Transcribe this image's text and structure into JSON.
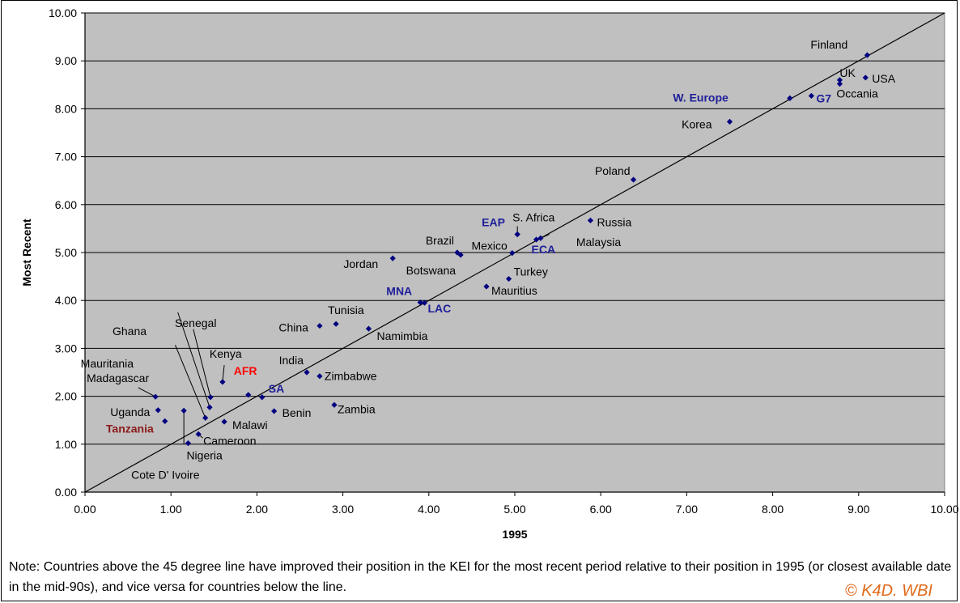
{
  "chart_data": {
    "type": "scatter",
    "title": "",
    "xlabel": "1995",
    "ylabel": "Most Recent",
    "xlim": [
      0,
      10
    ],
    "ylim": [
      0,
      10
    ],
    "x_ticks": [
      "0.00",
      "1.00",
      "2.00",
      "3.00",
      "4.00",
      "5.00",
      "6.00",
      "7.00",
      "8.00",
      "9.00",
      "10.00"
    ],
    "y_ticks": [
      "0.00",
      "1.00",
      "2.00",
      "3.00",
      "4.00",
      "5.00",
      "6.00",
      "7.00",
      "8.00",
      "9.00",
      "10.00"
    ],
    "grid": "horizontal",
    "reference_line": "45 degree line (y = x)",
    "colors": {
      "plot_bg": "#c0c0c0",
      "marker": "#000080",
      "country_label": "#000000",
      "region_label": "#1f1f9a",
      "focus_label": "#ff0000",
      "tanzania_label": "#8b1a1a",
      "credit": "#e06a1b"
    },
    "points": [
      {
        "label": "Finland",
        "x": 9.1,
        "y": 9.12,
        "kind": "country"
      },
      {
        "label": "UK",
        "x": 8.78,
        "y": 8.6,
        "kind": "country"
      },
      {
        "label": "USA",
        "x": 9.08,
        "y": 8.65,
        "kind": "country"
      },
      {
        "label": "Occania",
        "x": 8.78,
        "y": 8.52,
        "kind": "country"
      },
      {
        "label": "G7",
        "x": 8.45,
        "y": 8.27,
        "kind": "region"
      },
      {
        "label": "W. Europe",
        "x": 8.2,
        "y": 8.22,
        "kind": "region"
      },
      {
        "label": "Korea",
        "x": 7.5,
        "y": 7.73,
        "kind": "country"
      },
      {
        "label": "Poland",
        "x": 6.38,
        "y": 6.52,
        "kind": "country"
      },
      {
        "label": "Russia",
        "x": 5.88,
        "y": 5.67,
        "kind": "country"
      },
      {
        "label": "S. Africa",
        "x": 5.03,
        "y": 5.38,
        "kind": "country"
      },
      {
        "label": "EAP",
        "x": 5.03,
        "y": 5.38,
        "kind": "region"
      },
      {
        "label": "Malaysia",
        "x": 5.3,
        "y": 5.3,
        "kind": "country"
      },
      {
        "label": "ECA",
        "x": 5.25,
        "y": 5.27,
        "kind": "region"
      },
      {
        "label": "Mexico",
        "x": 4.97,
        "y": 4.99,
        "kind": "country"
      },
      {
        "label": "Brazil",
        "x": 4.33,
        "y": 5.0,
        "kind": "country"
      },
      {
        "label": "Botswana",
        "x": 4.37,
        "y": 4.95,
        "kind": "country"
      },
      {
        "label": "Jordan",
        "x": 3.58,
        "y": 4.88,
        "kind": "country"
      },
      {
        "label": "Turkey",
        "x": 4.93,
        "y": 4.45,
        "kind": "country"
      },
      {
        "label": "Mauritius",
        "x": 4.67,
        "y": 4.29,
        "kind": "country"
      },
      {
        "label": "MNA",
        "x": 3.9,
        "y": 3.96,
        "kind": "region"
      },
      {
        "label": "LAC",
        "x": 3.95,
        "y": 3.95,
        "kind": "region"
      },
      {
        "label": "China",
        "x": 2.73,
        "y": 3.47,
        "kind": "country"
      },
      {
        "label": "Tunisia",
        "x": 2.92,
        "y": 3.51,
        "kind": "country"
      },
      {
        "label": "Namimbia",
        "x": 3.3,
        "y": 3.41,
        "kind": "country"
      },
      {
        "label": "India",
        "x": 2.58,
        "y": 2.5,
        "kind": "country"
      },
      {
        "label": "Zimbabwe",
        "x": 2.73,
        "y": 2.42,
        "kind": "country"
      },
      {
        "label": "Zambia",
        "x": 2.9,
        "y": 1.82,
        "kind": "country"
      },
      {
        "label": "Benin",
        "x": 2.2,
        "y": 1.69,
        "kind": "country"
      },
      {
        "label": "SA",
        "x": 2.06,
        "y": 1.98,
        "kind": "region"
      },
      {
        "label": "AFR",
        "x": 1.9,
        "y": 2.03,
        "kind": "focus"
      },
      {
        "label": "Kenya",
        "x": 1.6,
        "y": 2.3,
        "kind": "country"
      },
      {
        "label": "Malawi",
        "x": 1.62,
        "y": 1.47,
        "kind": "country"
      },
      {
        "label": "Senegal",
        "x": 1.46,
        "y": 1.98,
        "kind": "country"
      },
      {
        "label": "Ghana",
        "x": 1.45,
        "y": 1.77,
        "kind": "country"
      },
      {
        "label": "Mauritania",
        "x": 1.4,
        "y": 1.55,
        "kind": "country"
      },
      {
        "label": "Cameroon",
        "x": 1.32,
        "y": 1.21,
        "kind": "country"
      },
      {
        "label": "Nigeria",
        "x": 1.2,
        "y": 1.02,
        "kind": "country"
      },
      {
        "label": "Cote D' Ivoire",
        "x": 1.15,
        "y": 1.7,
        "kind": "country"
      },
      {
        "label": "Madagascar",
        "x": 0.82,
        "y": 1.99,
        "kind": "country"
      },
      {
        "label": "Uganda",
        "x": 0.85,
        "y": 1.71,
        "kind": "country"
      },
      {
        "label": "Tanzania",
        "x": 0.93,
        "y": 1.48,
        "kind": "tanzania"
      }
    ]
  },
  "note": "Note: Countries above the 45 degree line have improved their position in the KEI for the most recent period relative to their position in 1995 (or closest available date in the mid-90s), and vice versa for countries below the line.",
  "credit": "© K4D. WBI"
}
